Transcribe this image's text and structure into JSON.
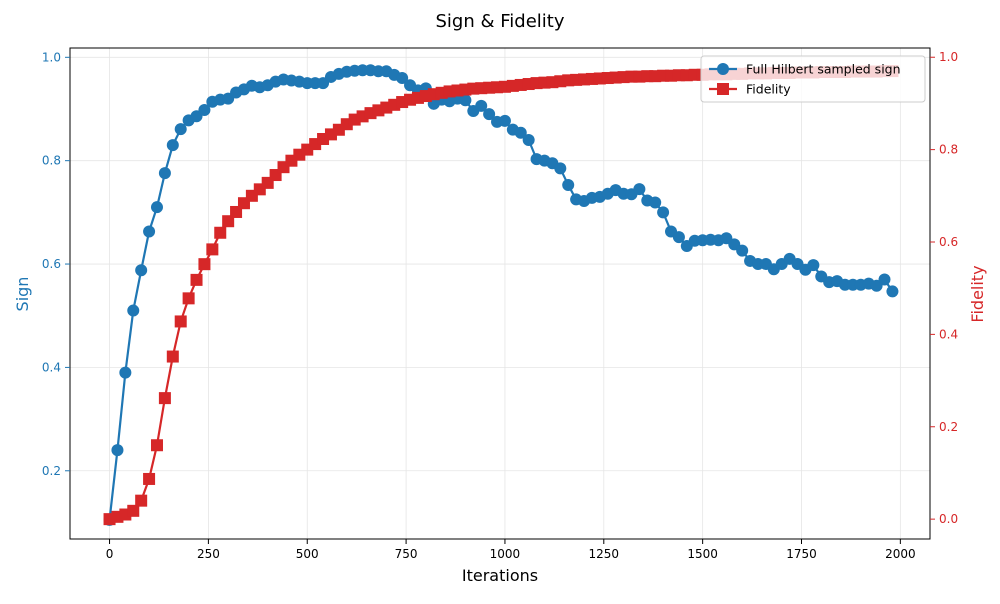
{
  "chart_data": {
    "type": "line",
    "title": "Sign & Fidelity",
    "xlabel": "Iterations",
    "ylabel_left": "Sign",
    "ylabel_right": "Fidelity",
    "xlim": [
      -100,
      2075
    ],
    "ylim_left": [
      0.068,
      1.018
    ],
    "ylim_right": [
      -0.043,
      1.02
    ],
    "x_ticks": [
      0,
      250,
      500,
      750,
      1000,
      1250,
      1500,
      1750,
      2000
    ],
    "y_left_ticks": [
      0.2,
      0.4,
      0.6,
      0.8,
      1.0
    ],
    "y_right_ticks": [
      0.0,
      0.2,
      0.4,
      0.6,
      0.8,
      1.0
    ],
    "grid": true,
    "legend_position": "top-right",
    "series": [
      {
        "name": "Full Hilbert sampled sign",
        "axis": "left",
        "color": "#1f77b4",
        "marker": "circle",
        "x": [
          0,
          20,
          40,
          60,
          80,
          100,
          120,
          140,
          160,
          180,
          200,
          220,
          240,
          260,
          280,
          300,
          320,
          340,
          360,
          380,
          400,
          420,
          440,
          460,
          480,
          500,
          520,
          540,
          560,
          580,
          600,
          620,
          640,
          660,
          680,
          700,
          720,
          740,
          760,
          780,
          800,
          820,
          840,
          860,
          880,
          900,
          920,
          940,
          960,
          980,
          1000,
          1020,
          1040,
          1060,
          1080,
          1100,
          1120,
          1140,
          1160,
          1180,
          1200,
          1220,
          1240,
          1260,
          1280,
          1300,
          1320,
          1340,
          1360,
          1380,
          1400,
          1420,
          1440,
          1460,
          1480,
          1500,
          1520,
          1540,
          1560,
          1580,
          1600,
          1620,
          1640,
          1660,
          1680,
          1700,
          1720,
          1740,
          1760,
          1780,
          1800,
          1820,
          1840,
          1860,
          1880,
          1900,
          1920,
          1940,
          1960,
          1980
        ],
        "values": [
          0.105,
          0.24,
          0.39,
          0.51,
          0.588,
          0.663,
          0.71,
          0.776,
          0.83,
          0.861,
          0.878,
          0.886,
          0.898,
          0.914,
          0.918,
          0.92,
          0.932,
          0.938,
          0.945,
          0.942,
          0.946,
          0.953,
          0.957,
          0.955,
          0.953,
          0.95,
          0.95,
          0.95,
          0.962,
          0.968,
          0.972,
          0.974,
          0.975,
          0.975,
          0.973,
          0.973,
          0.966,
          0.96,
          0.946,
          0.936,
          0.94,
          0.91,
          0.918,
          0.915,
          0.92,
          0.917,
          0.896,
          0.906,
          0.89,
          0.875,
          0.877,
          0.86,
          0.854,
          0.84,
          0.803,
          0.8,
          0.795,
          0.785,
          0.753,
          0.725,
          0.722,
          0.728,
          0.73,
          0.736,
          0.743,
          0.736,
          0.735,
          0.745,
          0.723,
          0.719,
          0.7,
          0.663,
          0.652,
          0.635,
          0.645,
          0.646,
          0.647,
          0.646,
          0.65,
          0.638,
          0.626,
          0.606,
          0.6,
          0.6,
          0.59,
          0.6,
          0.61,
          0.6,
          0.589,
          0.598,
          0.576,
          0.565,
          0.567,
          0.56,
          0.56,
          0.56,
          0.562,
          0.558,
          0.57,
          0.547
        ]
      },
      {
        "name": "Fidelity",
        "axis": "right",
        "color": "#d62728",
        "marker": "square",
        "x": [
          0,
          20,
          40,
          60,
          80,
          100,
          120,
          140,
          160,
          180,
          200,
          220,
          240,
          260,
          280,
          300,
          320,
          340,
          360,
          380,
          400,
          420,
          440,
          460,
          480,
          500,
          520,
          540,
          560,
          580,
          600,
          620,
          640,
          660,
          680,
          700,
          720,
          740,
          760,
          780,
          800,
          820,
          840,
          860,
          880,
          900,
          920,
          940,
          960,
          980,
          1000,
          1020,
          1040,
          1060,
          1080,
          1100,
          1120,
          1140,
          1160,
          1180,
          1200,
          1220,
          1240,
          1260,
          1280,
          1300,
          1320,
          1340,
          1360,
          1380,
          1400,
          1420,
          1440,
          1460,
          1480,
          1500,
          1520,
          1540,
          1560,
          1580,
          1600,
          1620,
          1640,
          1660,
          1680,
          1700,
          1720,
          1740,
          1760,
          1780,
          1800,
          1820,
          1840,
          1860,
          1880,
          1900,
          1920,
          1940,
          1960,
          1980
        ],
        "values": [
          0.0,
          0.005,
          0.01,
          0.018,
          0.04,
          0.087,
          0.16,
          0.262,
          0.352,
          0.428,
          0.478,
          0.518,
          0.552,
          0.584,
          0.62,
          0.645,
          0.665,
          0.684,
          0.7,
          0.714,
          0.728,
          0.745,
          0.762,
          0.776,
          0.789,
          0.8,
          0.812,
          0.823,
          0.833,
          0.843,
          0.855,
          0.865,
          0.872,
          0.879,
          0.885,
          0.891,
          0.897,
          0.903,
          0.908,
          0.912,
          0.916,
          0.92,
          0.923,
          0.926,
          0.928,
          0.93,
          0.932,
          0.933,
          0.934,
          0.935,
          0.936,
          0.938,
          0.94,
          0.942,
          0.944,
          0.945,
          0.946,
          0.948,
          0.95,
          0.951,
          0.952,
          0.953,
          0.954,
          0.955,
          0.956,
          0.957,
          0.958,
          0.958,
          0.959,
          0.959,
          0.96,
          0.96,
          0.961,
          0.961,
          0.962,
          0.962,
          0.963,
          0.963,
          0.963,
          0.964,
          0.964,
          0.965,
          0.965,
          0.965,
          0.966,
          0.966,
          0.966,
          0.967,
          0.967,
          0.967,
          0.968,
          0.968,
          0.968,
          0.968,
          0.969,
          0.969,
          0.969,
          0.969,
          0.97,
          0.97
        ]
      }
    ]
  }
}
